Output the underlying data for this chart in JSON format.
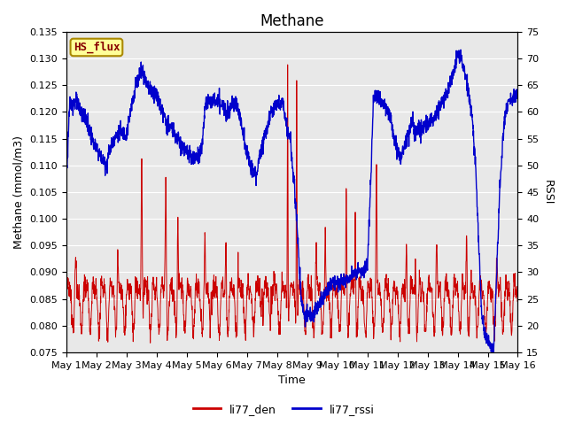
{
  "title": "Methane",
  "ylabel_left": "Methane (mmol/m3)",
  "ylabel_right": "RSSI",
  "xlabel": "Time",
  "ylim_left": [
    0.075,
    0.135
  ],
  "ylim_right": [
    15,
    75
  ],
  "yticks_left": [
    0.075,
    0.08,
    0.085,
    0.09,
    0.095,
    0.1,
    0.105,
    0.11,
    0.115,
    0.12,
    0.125,
    0.13,
    0.135
  ],
  "yticks_right": [
    15,
    20,
    25,
    30,
    35,
    40,
    45,
    50,
    55,
    60,
    65,
    70,
    75
  ],
  "xtick_labels": [
    "May 1",
    "May 2",
    "May 3",
    "May 4",
    "May 5",
    "May 6",
    "May 7",
    "May 8",
    "May 9",
    "May 10",
    "May 11",
    "May 12",
    "May 13",
    "May 14",
    "May 15",
    "May 16"
  ],
  "legend_labels": [
    "li77_den",
    "li77_rssi"
  ],
  "line_color_red": "#cc0000",
  "line_color_blue": "#0000cc",
  "annotation_text": "HS_flux",
  "annotation_bg": "#ffff99",
  "annotation_border": "#aa8800",
  "bg_color": "#e8e8e8",
  "fig_bg": "#ffffff",
  "title_fontsize": 12,
  "label_fontsize": 9,
  "tick_fontsize": 8
}
